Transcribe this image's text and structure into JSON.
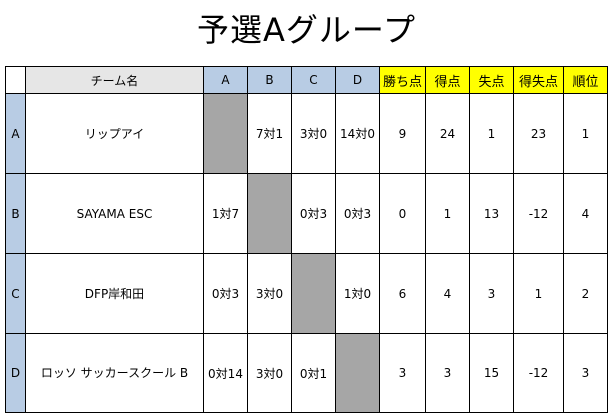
{
  "title": "予選Aグループ",
  "headers": {
    "team": "チーム名",
    "opponents": [
      "A",
      "B",
      "C",
      "D"
    ],
    "stats": [
      "勝ち点",
      "得点",
      "失点",
      "得失点",
      "順位"
    ]
  },
  "rows": [
    {
      "label": "A",
      "team": "リップアイ",
      "results": [
        "",
        "7対1",
        "3対0",
        "14対0"
      ],
      "stats": [
        "9",
        "24",
        "1",
        "23",
        "1"
      ]
    },
    {
      "label": "B",
      "team": "SAYAMA ESC",
      "results": [
        "1対7",
        "",
        "0対3",
        "0対3"
      ],
      "stats": [
        "0",
        "1",
        "13",
        "-12",
        "4"
      ]
    },
    {
      "label": "C",
      "team": "DFP岸和田",
      "results": [
        "0対3",
        "3対0",
        "",
        "1対0"
      ],
      "stats": [
        "6",
        "4",
        "3",
        "1",
        "2"
      ]
    },
    {
      "label": "D",
      "team": "ロッソ\nサッカースクール\nB",
      "results": [
        "0対14",
        "3対0",
        "0対1",
        ""
      ],
      "stats": [
        "3",
        "3",
        "15",
        "-12",
        "3"
      ]
    }
  ],
  "colors": {
    "header_blue": "#b8cce4",
    "header_yellow": "#ffff00",
    "self_match_gray": "#a6a6a6"
  }
}
